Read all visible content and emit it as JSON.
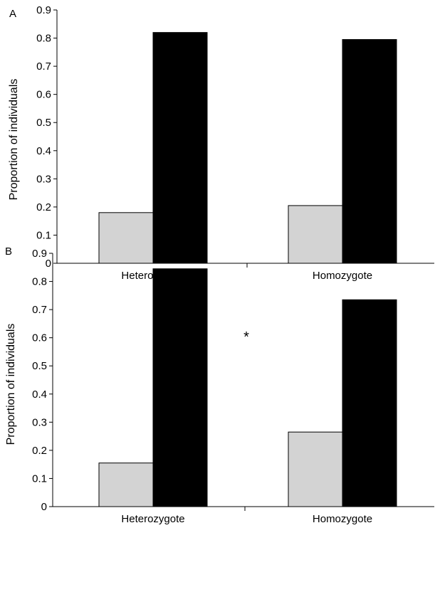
{
  "chart_data": [
    {
      "type": "bar",
      "panel_label": "A",
      "categories": [
        "Heterozygote",
        "Homozygote"
      ],
      "series": [
        {
          "values": [
            0.18,
            0.205
          ],
          "color": "#d3d3d3"
        },
        {
          "values": [
            0.82,
            0.795
          ],
          "color": "#000000"
        }
      ],
      "ylabel": "Proportion of individuals",
      "ylim": [
        0,
        0.9
      ],
      "yticks": [
        "0",
        "0.1",
        "0.2",
        "0.3",
        "0.4",
        "0.5",
        "0.6",
        "0.7",
        "0.8",
        "0.9"
      ],
      "annotation": "",
      "grid": false
    },
    {
      "type": "bar",
      "panel_label": "B",
      "categories": [
        "Heterozygote",
        "Homozygote"
      ],
      "series": [
        {
          "values": [
            0.155,
            0.265
          ],
          "color": "#d3d3d3"
        },
        {
          "values": [
            0.845,
            0.735
          ],
          "color": "#000000"
        }
      ],
      "ylabel": "Proportion of individuals",
      "ylim": [
        0,
        0.9
      ],
      "yticks": [
        "0",
        "0.1",
        "0.2",
        "0.3",
        "0.4",
        "0.5",
        "0.6",
        "0.7",
        "0.8",
        "0.9"
      ],
      "annotation": "*",
      "grid": false
    }
  ]
}
